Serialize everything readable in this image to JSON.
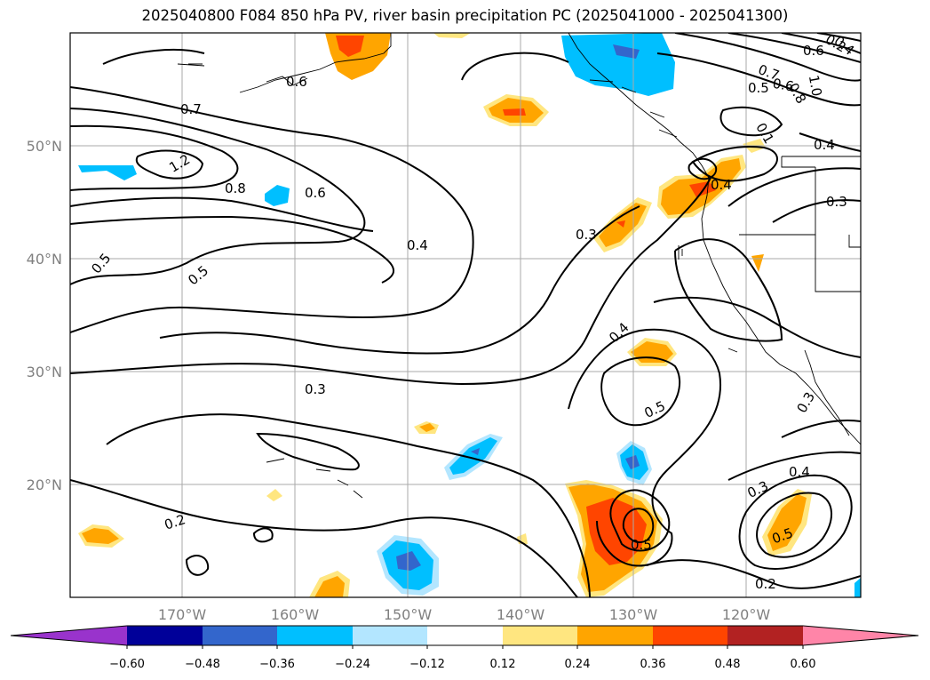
{
  "title": "2025040800 F084 850 hPa PV, river basin precipitation PC (2025041000 - 2025041300)",
  "map": {
    "lon_range": [
      -180,
      -110
    ],
    "lat_range": [
      10,
      60
    ],
    "x_ticks": [
      "170°W",
      "160°W",
      "150°W",
      "140°W",
      "130°W",
      "120°W"
    ],
    "y_ticks": [
      "20°N",
      "30°N",
      "40°N",
      "50°N"
    ],
    "contour_labels": [
      "0.7",
      "0.6",
      "1.2",
      "0.8",
      "0.6",
      "0.5",
      "0.5",
      "0.4",
      "0.3",
      "0.2",
      "0.4",
      "0.5",
      "0.5",
      "0.3",
      "0.3",
      "0.4",
      "0.5",
      "0.2",
      "0.3",
      "0.4",
      "0.3",
      "0.4",
      "0.7",
      "0.8",
      "1.0",
      "0.6",
      "0.5",
      "0.1",
      "0.2",
      "0.6",
      "0.4"
    ]
  },
  "colorbar": {
    "tick_labels": [
      "−0.60",
      "−0.48",
      "−0.36",
      "−0.24",
      "−0.12",
      "0.12",
      "0.24",
      "0.36",
      "0.48",
      "0.60"
    ],
    "colors": [
      "#9933cc",
      "#000099",
      "#3366cc",
      "#00bfff",
      "#b3e6ff",
      "#ffffff",
      "#ffe680",
      "#ffa500",
      "#ff4500",
      "#b22222",
      "#ff85a8"
    ]
  }
}
